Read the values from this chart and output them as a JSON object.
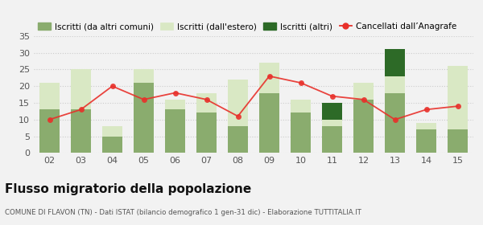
{
  "years": [
    "02",
    "03",
    "04",
    "05",
    "06",
    "07",
    "08",
    "09",
    "10",
    "11",
    "12",
    "13",
    "14",
    "15"
  ],
  "iscritti_altri_comuni": [
    13,
    13,
    5,
    21,
    13,
    12,
    8,
    18,
    12,
    8,
    16,
    18,
    7,
    7
  ],
  "iscritti_estero": [
    8,
    12,
    3,
    4,
    3,
    6,
    14,
    9,
    4,
    2,
    5,
    5,
    2,
    19
  ],
  "iscritti_altri": [
    0,
    0,
    0,
    0,
    0,
    0,
    0,
    0,
    0,
    5,
    0,
    8,
    0,
    0
  ],
  "cancellati": [
    10,
    13,
    20,
    16,
    18,
    16,
    11,
    23,
    21,
    17,
    16,
    10,
    13,
    14
  ],
  "color_altri_comuni": "#8aac6e",
  "color_estero": "#d9e8c4",
  "color_altri": "#2d6a27",
  "color_cancellati": "#e8302a",
  "ylim": [
    0,
    35
  ],
  "yticks": [
    0,
    5,
    10,
    15,
    20,
    25,
    30,
    35
  ],
  "title": "Flusso migratorio della popolazione",
  "subtitle": "COMUNE DI FLAVON (TN) - Dati ISTAT (bilancio demografico 1 gen-31 dic) - Elaborazione TUTTITALIA.IT",
  "legend_labels": [
    "Iscritti (da altri comuni)",
    "Iscritti (dall'estero)",
    "Iscritti (altri)",
    "Cancellati dall’Anagrafe"
  ],
  "bg_color": "#f2f2f2",
  "grid_color": "#cccccc"
}
